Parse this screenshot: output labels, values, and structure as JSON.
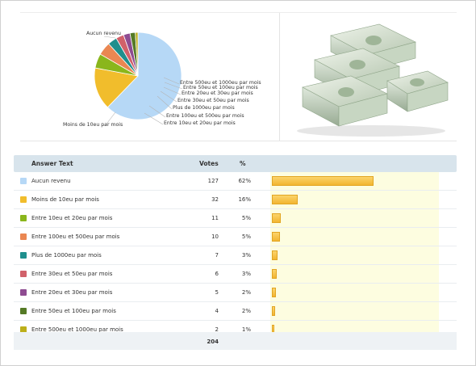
{
  "poll": {
    "columns": {
      "answer": "Answer Text",
      "votes": "Votes",
      "percent": "%"
    },
    "total": "204"
  },
  "chart_data": {
    "type": "pie",
    "categories": [
      "Aucun revenu",
      "Moins de 10eu par mois",
      "Entre 10eu et 20eu par mois",
      "Entre 100eu et 500eu par mois",
      "Plus de 1000eu par mois",
      "Entre 30eu et 50eu par mois",
      "Entre 20eu et 30eu par mois",
      "Entre 50eu et 100eu par mois",
      "Entre 500eu et 1000eu par mois"
    ],
    "values": [
      127,
      32,
      11,
      10,
      7,
      6,
      5,
      4,
      2
    ],
    "percents": [
      "62%",
      "16%",
      "5%",
      "5%",
      "3%",
      "3%",
      "2%",
      "2%",
      "1%"
    ],
    "colors": [
      "#b6d8f6",
      "#f1bd2c",
      "#8ab61c",
      "#ea8752",
      "#1f8f8d",
      "#d1616a",
      "#8e4c91",
      "#557a26",
      "#bcaf1a"
    ],
    "pie_labels": [
      "Aucun revenu",
      "Entre 500eu et 1000eu par mois",
      "Entre 50eu et 100eu par mois",
      "Entre 20eu et 30eu par mois",
      "Entre 30eu et 50eu par mois",
      "Plus de 1000eu par mois",
      "Entre 100eu et 500eu par mois",
      "Entre 10eu et 20eu par mois",
      "Moins de 10eu par mois"
    ],
    "bar_color": "#f2b531"
  },
  "image": {
    "icon": "money-stacks-icon"
  }
}
